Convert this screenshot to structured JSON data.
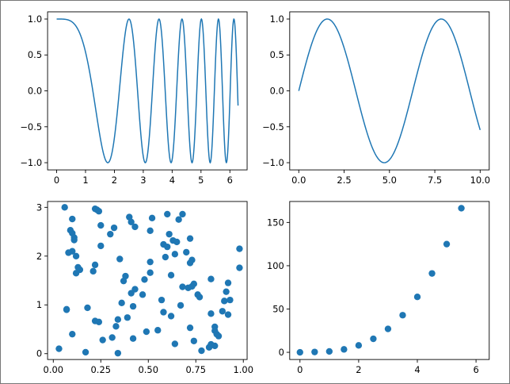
{
  "figure": {
    "line_color": "#1f77b4",
    "marker_color": "#1f77b4",
    "axes_color": "#000000"
  },
  "chart_data": [
    {
      "id": "ax1",
      "type": "line",
      "title": "",
      "xlabel": "",
      "ylabel": "",
      "function": "cos(x^2)",
      "x_range": [
        0,
        6.283
      ],
      "num_points": 600,
      "xlim": [
        -0.314,
        6.597
      ],
      "ylim": [
        -1.1,
        1.1
      ],
      "xticks": [
        0,
        1,
        2,
        3,
        4,
        5,
        6
      ],
      "xticklabels": [
        "0",
        "1",
        "2",
        "3",
        "4",
        "5",
        "6"
      ],
      "yticks": [
        -1.0,
        -0.5,
        0.0,
        0.5,
        1.0
      ],
      "yticklabels": [
        "−1.0",
        "−0.5",
        "0.0",
        "0.5",
        "1.0"
      ],
      "grid": false
    },
    {
      "id": "ax2",
      "type": "line",
      "title": "",
      "xlabel": "",
      "ylabel": "",
      "function": "sin(x)",
      "x_range": [
        0,
        10
      ],
      "num_points": 300,
      "xlim": [
        -0.5,
        10.5
      ],
      "ylim": [
        -1.1,
        1.1
      ],
      "xticks": [
        0,
        2.5,
        5,
        7.5,
        10
      ],
      "xticklabels": [
        "0.0",
        "2.5",
        "5.0",
        "7.5",
        "10.0"
      ],
      "yticks": [
        -1.0,
        -0.5,
        0.0,
        0.5,
        1.0
      ],
      "yticklabels": [
        "−1.0",
        "−0.5",
        "0.0",
        "0.5",
        "1.0"
      ],
      "grid": false
    },
    {
      "id": "ax3",
      "type": "scatter",
      "title": "",
      "xlabel": "",
      "ylabel": "",
      "xlim": [
        -0.03,
        1.02
      ],
      "ylim": [
        -0.12,
        3.12
      ],
      "xticks": [
        0,
        0.25,
        0.5,
        0.75,
        1.0
      ],
      "xticklabels": [
        "0.00",
        "0.25",
        "0.50",
        "0.75",
        "1.00"
      ],
      "yticks": [
        0,
        1,
        2,
        3
      ],
      "yticklabels": [
        "0",
        "1",
        "2",
        "3"
      ],
      "grid": false,
      "points": [
        [
          0.06,
          3.0
        ],
        [
          0.22,
          2.97
        ],
        [
          0.23,
          2.95
        ],
        [
          0.24,
          2.92
        ],
        [
          0.1,
          2.76
        ],
        [
          0.4,
          2.8
        ],
        [
          0.52,
          2.78
        ],
        [
          0.6,
          2.86
        ],
        [
          0.68,
          2.86
        ],
        [
          0.66,
          2.75
        ],
        [
          0.41,
          2.7
        ],
        [
          0.25,
          2.63
        ],
        [
          0.43,
          2.6
        ],
        [
          0.51,
          2.52
        ],
        [
          0.09,
          2.53
        ],
        [
          0.1,
          2.47
        ],
        [
          0.32,
          2.58
        ],
        [
          0.3,
          2.45
        ],
        [
          0.11,
          2.38
        ],
        [
          0.11,
          2.33
        ],
        [
          0.61,
          2.45
        ],
        [
          0.63,
          2.32
        ],
        [
          0.65,
          2.29
        ],
        [
          0.72,
          2.36
        ],
        [
          0.25,
          2.21
        ],
        [
          0.58,
          2.24
        ],
        [
          0.6,
          2.19
        ],
        [
          0.98,
          2.15
        ],
        [
          0.08,
          2.07
        ],
        [
          0.1,
          2.1
        ],
        [
          0.12,
          2.0
        ],
        [
          0.59,
          1.98
        ],
        [
          0.64,
          2.04
        ],
        [
          0.35,
          1.94
        ],
        [
          0.7,
          2.08
        ],
        [
          0.51,
          1.88
        ],
        [
          0.72,
          1.86
        ],
        [
          0.73,
          1.92
        ],
        [
          0.98,
          1.76
        ],
        [
          0.22,
          1.82
        ],
        [
          0.13,
          1.77
        ],
        [
          0.14,
          1.72
        ],
        [
          0.12,
          1.65
        ],
        [
          0.21,
          1.69
        ],
        [
          0.38,
          1.59
        ],
        [
          0.51,
          1.66
        ],
        [
          0.37,
          1.49
        ],
        [
          0.48,
          1.52
        ],
        [
          0.62,
          1.61
        ],
        [
          0.83,
          1.53
        ],
        [
          0.41,
          1.24
        ],
        [
          0.43,
          1.32
        ],
        [
          0.47,
          1.21
        ],
        [
          0.68,
          1.37
        ],
        [
          0.74,
          1.43
        ],
        [
          0.71,
          1.35
        ],
        [
          0.73,
          1.38
        ],
        [
          0.76,
          1.21
        ],
        [
          0.77,
          1.16
        ],
        [
          0.92,
          1.45
        ],
        [
          0.91,
          1.27
        ],
        [
          0.57,
          1.1
        ],
        [
          0.93,
          1.1
        ],
        [
          0.36,
          1.04
        ],
        [
          0.42,
          0.97
        ],
        [
          0.07,
          0.91
        ],
        [
          0.07,
          0.9
        ],
        [
          0.18,
          0.94
        ],
        [
          0.67,
          0.99
        ],
        [
          0.9,
          1.08
        ],
        [
          0.62,
          0.77
        ],
        [
          0.83,
          0.82
        ],
        [
          0.89,
          0.87
        ],
        [
          0.92,
          0.8
        ],
        [
          0.22,
          0.67
        ],
        [
          0.24,
          0.65
        ],
        [
          0.34,
          0.7
        ],
        [
          0.39,
          0.74
        ],
        [
          0.33,
          0.56
        ],
        [
          0.85,
          0.55
        ],
        [
          0.85,
          0.47
        ],
        [
          0.72,
          0.53
        ],
        [
          0.55,
          0.48
        ],
        [
          0.49,
          0.45
        ],
        [
          0.1,
          0.4
        ],
        [
          0.86,
          0.4
        ],
        [
          0.87,
          0.36
        ],
        [
          0.31,
          0.33
        ],
        [
          0.42,
          0.31
        ],
        [
          0.26,
          0.28
        ],
        [
          0.74,
          0.26
        ],
        [
          0.83,
          0.19
        ],
        [
          0.85,
          0.16
        ],
        [
          0.64,
          0.2
        ],
        [
          0.03,
          0.1
        ],
        [
          0.78,
          0.06
        ],
        [
          0.17,
          0.03
        ],
        [
          0.34,
          0.01
        ],
        [
          0.58,
          0.85
        ],
        [
          0.82,
          0.13
        ]
      ]
    },
    {
      "id": "ax4",
      "type": "scatter",
      "title": "",
      "xlabel": "",
      "ylabel": "",
      "xlim": [
        -0.35,
        6.45
      ],
      "ylim": [
        -8.3,
        174.2
      ],
      "xticks": [
        0,
        2,
        4,
        6
      ],
      "xticklabels": [
        "0",
        "2",
        "4",
        "6"
      ],
      "yticks": [
        0,
        50,
        100,
        150
      ],
      "yticklabels": [
        "0",
        "50",
        "100",
        "150"
      ],
      "grid": false,
      "points": [
        [
          0.0,
          0.0
        ],
        [
          0.5,
          0.4
        ],
        [
          1.0,
          1.0
        ],
        [
          1.5,
          3.4
        ],
        [
          2.0,
          8.0
        ],
        [
          2.5,
          15.6
        ],
        [
          3.0,
          27.0
        ],
        [
          3.5,
          42.9
        ],
        [
          4.0,
          64.0
        ],
        [
          4.5,
          91.1
        ],
        [
          5.0,
          125.0
        ],
        [
          5.5,
          166.4
        ]
      ]
    }
  ]
}
